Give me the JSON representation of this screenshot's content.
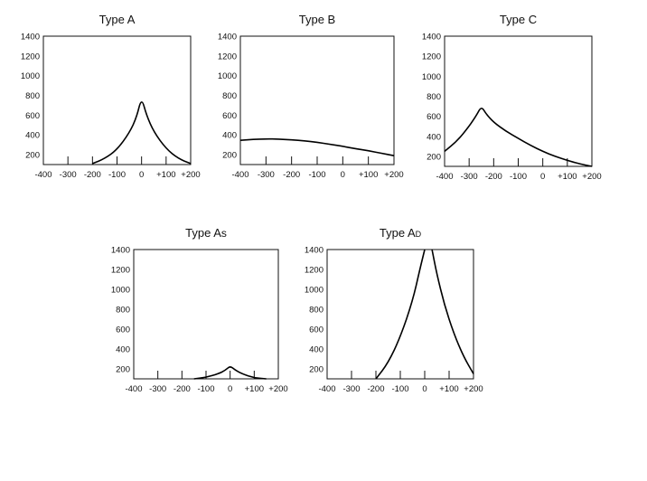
{
  "chart_data": [
    {
      "type": "line",
      "title": "Type A",
      "xticks": [
        "-400",
        "-300",
        "-200",
        "-100",
        "0",
        "+100",
        "+200"
      ],
      "yticks": [
        "200",
        "400",
        "600",
        "800",
        "1000",
        "1200",
        "1400"
      ],
      "xlim": [
        -400,
        200
      ],
      "ylim": [
        100,
        1400
      ],
      "series": [
        {
          "x": [
            -200,
            -150,
            -100,
            -50,
            -20,
            0,
            20,
            50,
            100,
            150,
            200
          ],
          "y": [
            110,
            160,
            250,
            420,
            580,
            780,
            600,
            430,
            260,
            160,
            110
          ]
        }
      ]
    },
    {
      "type": "line",
      "title": "Type B",
      "xticks": [
        "-400",
        "-300",
        "-200",
        "-100",
        "0",
        "+100",
        "+200"
      ],
      "yticks": [
        "200",
        "400",
        "600",
        "800",
        "1000",
        "1200",
        "1400"
      ],
      "xlim": [
        -400,
        200
      ],
      "ylim": [
        100,
        1400
      ],
      "series": [
        {
          "x": [
            -400,
            -350,
            -300,
            -250,
            -200,
            -150,
            -100,
            -50,
            0,
            50,
            100,
            150,
            200
          ],
          "y": [
            345,
            355,
            360,
            358,
            350,
            340,
            325,
            305,
            285,
            260,
            240,
            215,
            190
          ]
        }
      ]
    },
    {
      "type": "line",
      "title": "Type C",
      "xticks": [
        "-400",
        "-300",
        "-200",
        "-100",
        "0",
        "+100",
        "+200"
      ],
      "yticks": [
        "200",
        "400",
        "600",
        "800",
        "1000",
        "1200",
        "1400"
      ],
      "xlim": [
        -400,
        200
      ],
      "ylim": [
        100,
        1400
      ],
      "series": [
        {
          "x": [
            -400,
            -350,
            -300,
            -270,
            -250,
            -230,
            -200,
            -150,
            -100,
            -50,
            0,
            50,
            100,
            150,
            200
          ],
          "y": [
            250,
            350,
            500,
            610,
            700,
            620,
            540,
            450,
            380,
            310,
            250,
            200,
            160,
            125,
            100
          ]
        }
      ]
    },
    {
      "type": "line",
      "title": "Type As",
      "xticks": [
        "-400",
        "-300",
        "-200",
        "-100",
        "0",
        "+100",
        "+200"
      ],
      "yticks": [
        "200",
        "400",
        "600",
        "800",
        "1000",
        "1200",
        "1400"
      ],
      "xlim": [
        -400,
        200
      ],
      "ylim": [
        100,
        1400
      ],
      "series": [
        {
          "x": [
            -150,
            -100,
            -50,
            -20,
            0,
            20,
            50,
            100,
            150
          ],
          "y": [
            100,
            115,
            150,
            185,
            230,
            190,
            150,
            110,
            100
          ]
        }
      ]
    },
    {
      "type": "line",
      "title": "Type AD",
      "xticks": [
        "-400",
        "-300",
        "-200",
        "-100",
        "0",
        "+100",
        "+200"
      ],
      "yticks": [
        "200",
        "400",
        "600",
        "800",
        "1000",
        "1200",
        "1400"
      ],
      "xlim": [
        -400,
        200
      ],
      "ylim": [
        100,
        1400
      ],
      "series": [
        {
          "x": [
            -200,
            -150,
            -100,
            -50,
            -20,
            0
          ],
          "y": [
            100,
            260,
            520,
            880,
            1200,
            1400
          ]
        },
        {
          "x": [
            30,
            50,
            80,
            120,
            160,
            200
          ],
          "y": [
            1400,
            1150,
            850,
            550,
            320,
            150
          ]
        }
      ]
    }
  ]
}
